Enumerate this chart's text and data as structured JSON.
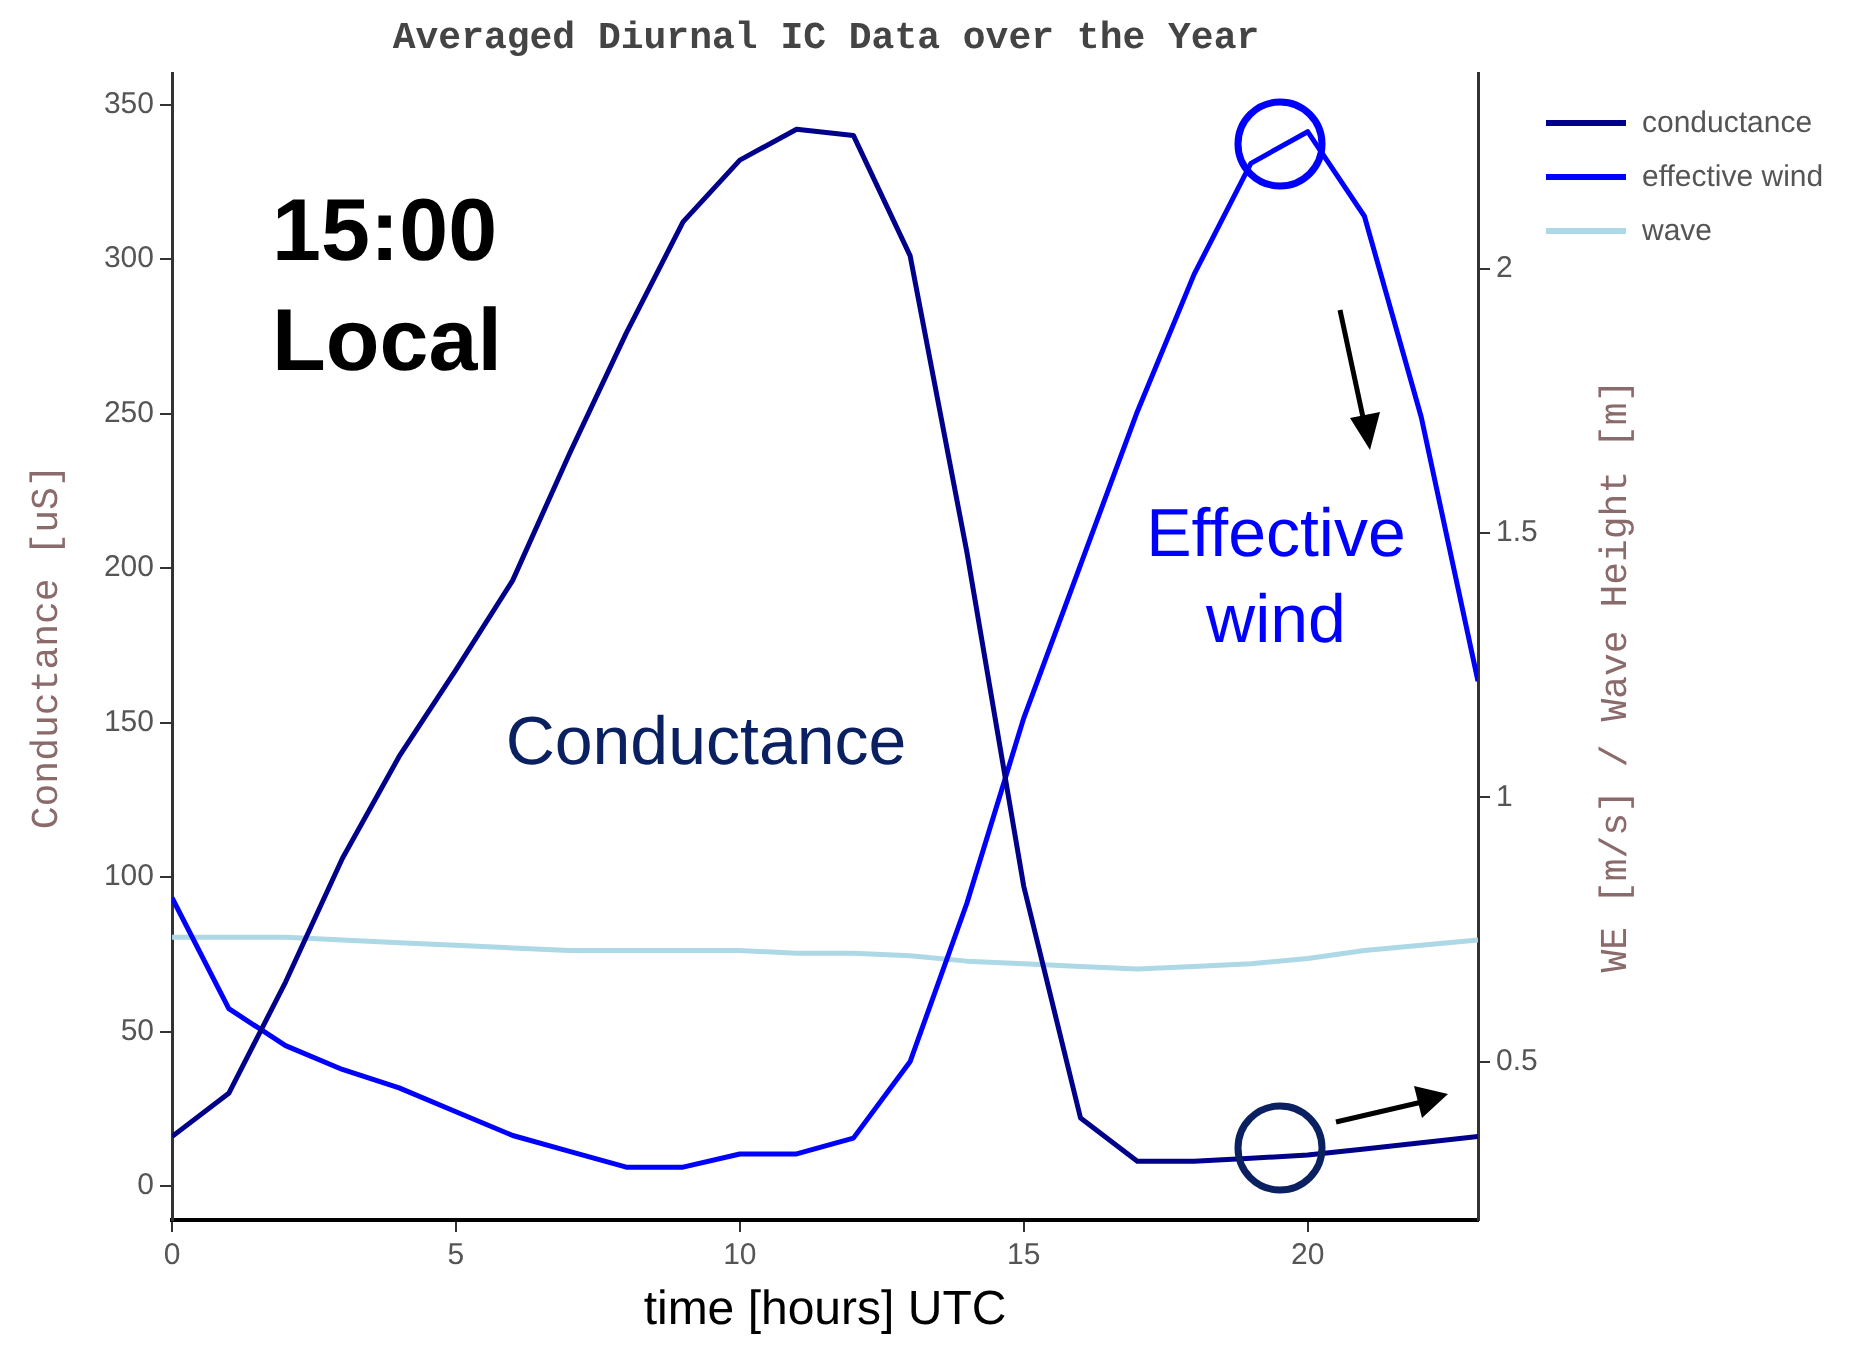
{
  "chart_data": {
    "type": "line",
    "title": "Averaged Diurnal IC Data over the Year",
    "xlabel": "time [hours] UTC",
    "ylabel": "Conductance [uS]",
    "y2label": "WE [m/s] / Wave Height [m]",
    "x": [
      0,
      1,
      2,
      3,
      4,
      5,
      6,
      7,
      8,
      9,
      10,
      11,
      12,
      13,
      14,
      15,
      16,
      17,
      18,
      19,
      20,
      21,
      22,
      23
    ],
    "series": [
      {
        "name": "conductance",
        "color": "#00008b",
        "values": [
          16,
          30,
          66,
          106,
          139,
          167,
          196,
          237,
          276,
          312,
          332,
          342,
          340,
          301,
          205,
          97,
          22,
          8,
          8,
          9,
          10,
          12,
          14,
          16
        ]
      },
      {
        "name": "effective wind",
        "color": "#0000ff",
        "axis": "y2",
        "values": [
          0.81,
          0.6,
          0.53,
          0.485,
          0.45,
          0.405,
          0.36,
          0.33,
          0.3,
          0.3,
          0.325,
          0.325,
          0.355,
          0.5,
          0.8,
          1.15,
          1.44,
          1.73,
          1.99,
          2.2,
          2.26,
          2.1,
          1.72,
          1.22
        ]
      },
      {
        "name": "wave",
        "color": "#add8e6",
        "axis": "y2",
        "values": [
          0.735,
          0.735,
          0.735,
          0.73,
          0.725,
          0.72,
          0.715,
          0.71,
          0.71,
          0.71,
          0.71,
          0.705,
          0.705,
          0.7,
          0.69,
          0.685,
          0.68,
          0.675,
          0.68,
          0.685,
          0.695,
          0.71,
          0.72,
          0.73
        ]
      }
    ],
    "xlim": [
      0,
      23
    ],
    "xticks": [
      0,
      5,
      10,
      15,
      20
    ],
    "ylim": [
      -11,
      360
    ],
    "yticks": [
      0,
      50,
      100,
      150,
      200,
      250,
      300,
      350
    ],
    "y2lim": [
      0.2,
      2.37
    ],
    "y2ticks": [
      0.5,
      1,
      1.5,
      2
    ],
    "grid": false,
    "legend": "top right",
    "marker": "none",
    "line_style": "solid",
    "annotations": [
      "15:00 Local",
      "Conductance",
      "Effective wind"
    ]
  }
}
